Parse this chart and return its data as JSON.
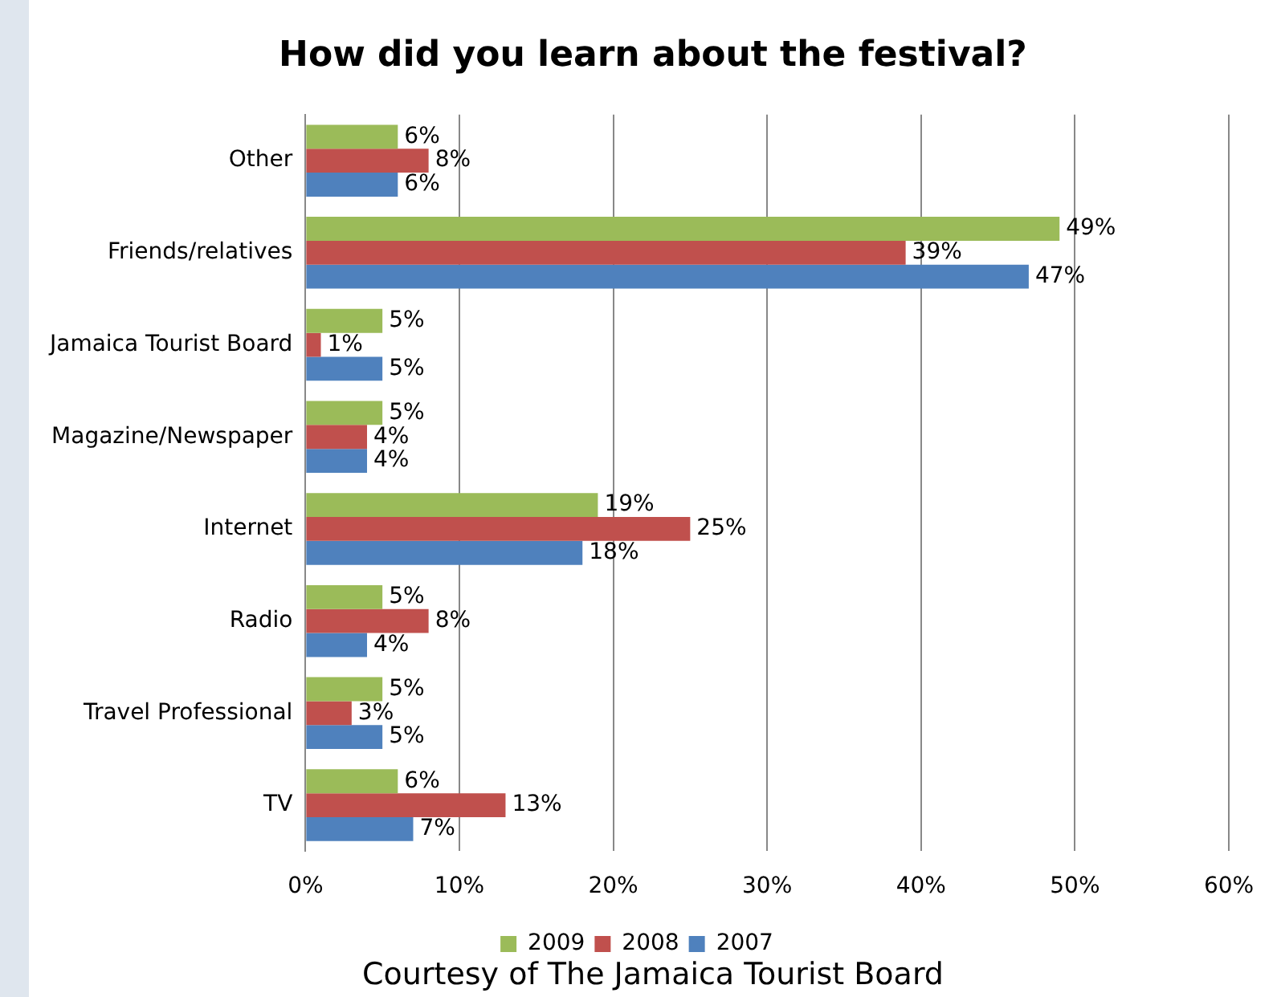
{
  "chart_data": {
    "type": "bar",
    "orientation": "horizontal",
    "title": "How did you learn about the festival?",
    "categories": [
      "Other",
      "Friends/relatives",
      "Jamaica Tourist Board",
      "Magazine/Newspaper",
      "Internet",
      "Radio",
      "Travel Professional",
      "TV"
    ],
    "series": [
      {
        "name": "2009",
        "color": "#9bbb59",
        "values": [
          6,
          49,
          5,
          5,
          19,
          5,
          5,
          6
        ],
        "value_labels": [
          "6%",
          "49%",
          "5%",
          "5%",
          "19%",
          "5%",
          "5%",
          "6%"
        ]
      },
      {
        "name": "2008",
        "color": "#c0504d",
        "values": [
          8,
          39,
          1,
          4,
          25,
          8,
          3,
          13
        ],
        "value_labels": [
          "8%",
          "39%",
          "1%",
          "4%",
          "25%",
          "8%",
          "3%",
          "13%"
        ]
      },
      {
        "name": "2007",
        "color": "#4f81bd",
        "values": [
          6,
          47,
          5,
          4,
          18,
          4,
          5,
          7
        ],
        "value_labels": [
          "6%",
          "47%",
          "5%",
          "4%",
          "18%",
          "4%",
          "5%",
          "7%"
        ]
      }
    ],
    "xlim": [
      0,
      60
    ],
    "xticks": [
      {
        "value": 0,
        "label": "0%"
      },
      {
        "value": 10,
        "label": "10%"
      },
      {
        "value": 20,
        "label": "20%"
      },
      {
        "value": 30,
        "label": "30%"
      },
      {
        "value": 40,
        "label": "40%"
      },
      {
        "value": 50,
        "label": "50%"
      },
      {
        "value": 60,
        "label": "60%"
      }
    ],
    "grid": "x",
    "legend": "bottom",
    "annotations": [
      "Courtesy of The Jamaica Tourist Board"
    ]
  }
}
